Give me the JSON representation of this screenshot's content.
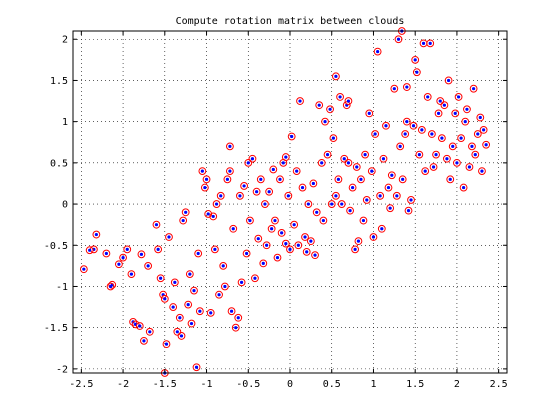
{
  "chart_data": {
    "type": "scatter",
    "title": "Compute rotation matrix between clouds",
    "xlabel": "",
    "ylabel": "",
    "xlim": [
      -2.6,
      2.6
    ],
    "ylim": [
      -2.05,
      2.1
    ],
    "xticks": [
      -2.5,
      -2,
      -1.5,
      -1,
      -0.5,
      0,
      0.5,
      1,
      1.5,
      2,
      2.5
    ],
    "xtick_labels": [
      "-2.5",
      "-2",
      "-1.5",
      "-1",
      "-0.5",
      "0",
      "0.5",
      "1",
      "1.5",
      "2",
      "2.5"
    ],
    "yticks": [
      -2,
      -1.5,
      -1,
      -0.5,
      0,
      0.5,
      1,
      1.5,
      2
    ],
    "ytick_labels": [
      "-2",
      "-1.5",
      "-1",
      "-0.5",
      "0",
      "0.5",
      "1",
      "1.5",
      "2"
    ],
    "grid": true,
    "grid_style": "dotted",
    "colors": {
      "circle": "#ff0000",
      "dot": "#0000ff",
      "axes": "#000000",
      "grid": "#000000"
    },
    "series": [
      {
        "marker": "red circle with blue dot",
        "points": [
          [
            -2.47,
            -0.79
          ],
          [
            -2.35,
            -0.55
          ],
          [
            -2.4,
            -0.56
          ],
          [
            -2.32,
            -0.37
          ],
          [
            -2.2,
            -0.6
          ],
          [
            -2.13,
            -0.98
          ],
          [
            -2.15,
            -1.0
          ],
          [
            -2.05,
            -0.73
          ],
          [
            -2.0,
            -0.65
          ],
          [
            -1.95,
            -0.55
          ],
          [
            -1.9,
            -0.85
          ],
          [
            -1.88,
            -1.43
          ],
          [
            -1.85,
            -1.46
          ],
          [
            -1.8,
            -1.48
          ],
          [
            -1.78,
            -0.61
          ],
          [
            -1.75,
            -1.66
          ],
          [
            -1.7,
            -0.75
          ],
          [
            -1.68,
            -1.55
          ],
          [
            -1.6,
            -0.25
          ],
          [
            -1.58,
            -0.55
          ],
          [
            -1.55,
            -0.9
          ],
          [
            -1.52,
            -1.1
          ],
          [
            -1.5,
            -1.15
          ],
          [
            -1.48,
            -1.7
          ],
          [
            -1.45,
            -0.4
          ],
          [
            -1.4,
            -1.25
          ],
          [
            -1.38,
            -0.95
          ],
          [
            -1.35,
            -1.55
          ],
          [
            -1.32,
            -1.38
          ],
          [
            -1.3,
            -1.6
          ],
          [
            -1.28,
            -0.2
          ],
          [
            -1.25,
            -0.1
          ],
          [
            -1.22,
            -1.22
          ],
          [
            -1.2,
            -0.85
          ],
          [
            -1.18,
            -1.45
          ],
          [
            -1.15,
            -1.05
          ],
          [
            -1.12,
            -1.98
          ],
          [
            -1.1,
            -0.6
          ],
          [
            -1.08,
            -1.3
          ],
          [
            -1.05,
            0.4
          ],
          [
            -1.02,
            0.2
          ],
          [
            -1.0,
            0.3
          ],
          [
            -0.98,
            -0.12
          ],
          [
            -0.95,
            -1.32
          ],
          [
            -0.92,
            -0.15
          ],
          [
            -0.9,
            -0.55
          ],
          [
            -0.88,
            0.0
          ],
          [
            -0.85,
            -1.1
          ],
          [
            -0.83,
            0.1
          ],
          [
            -0.8,
            -0.75
          ],
          [
            -0.78,
            -1.0
          ],
          [
            -0.75,
            0.3
          ],
          [
            -0.72,
            0.4
          ],
          [
            -0.7,
            -1.3
          ],
          [
            -0.68,
            -0.3
          ],
          [
            -0.65,
            -1.5
          ],
          [
            -0.62,
            -1.38
          ],
          [
            -0.6,
            0.1
          ],
          [
            -0.58,
            -0.95
          ],
          [
            -0.55,
            0.22
          ],
          [
            -0.52,
            -0.6
          ],
          [
            -0.5,
            0.5
          ],
          [
            -0.48,
            -0.2
          ],
          [
            -0.45,
            0.55
          ],
          [
            -0.42,
            -0.9
          ],
          [
            -0.4,
            0.15
          ],
          [
            -0.38,
            -0.42
          ],
          [
            -0.35,
            0.3
          ],
          [
            -0.32,
            -0.72
          ],
          [
            -0.3,
            0.0
          ],
          [
            -0.28,
            -0.5
          ],
          [
            -0.25,
            0.15
          ],
          [
            -0.22,
            -0.3
          ],
          [
            -0.2,
            0.42
          ],
          [
            -0.18,
            -0.2
          ],
          [
            -0.15,
            -0.65
          ],
          [
            -0.12,
            0.3
          ],
          [
            -0.1,
            -0.35
          ],
          [
            -0.08,
            0.5
          ],
          [
            -0.05,
            -0.48
          ],
          [
            -0.02,
            0.1
          ],
          [
            0.0,
            -0.55
          ],
          [
            0.02,
            0.82
          ],
          [
            0.05,
            -0.25
          ],
          [
            0.08,
            0.4
          ],
          [
            0.1,
            -0.5
          ],
          [
            0.12,
            1.25
          ],
          [
            0.15,
            0.2
          ],
          [
            0.18,
            -0.4
          ],
          [
            0.2,
            -0.58
          ],
          [
            0.22,
            0.0
          ],
          [
            0.25,
            -0.45
          ],
          [
            0.28,
            0.25
          ],
          [
            0.3,
            -0.62
          ],
          [
            0.32,
            -0.1
          ],
          [
            0.35,
            1.2
          ],
          [
            0.38,
            0.5
          ],
          [
            0.4,
            -0.2
          ],
          [
            0.42,
            1.0
          ],
          [
            0.45,
            0.6
          ],
          [
            0.48,
            1.15
          ],
          [
            0.5,
            0.0
          ],
          [
            0.52,
            0.8
          ],
          [
            0.55,
            0.1
          ],
          [
            0.58,
            0.3
          ],
          [
            0.6,
            1.3
          ],
          [
            0.62,
            0.0
          ],
          [
            0.65,
            0.55
          ],
          [
            0.68,
            1.2
          ],
          [
            0.7,
            0.5
          ],
          [
            0.72,
            -0.08
          ],
          [
            0.75,
            0.2
          ],
          [
            0.78,
            -0.55
          ],
          [
            0.8,
            0.45
          ],
          [
            0.82,
            -0.45
          ],
          [
            0.85,
            0.3
          ],
          [
            0.88,
            -0.2
          ],
          [
            0.9,
            0.6
          ],
          [
            0.92,
            0.05
          ],
          [
            0.95,
            1.1
          ],
          [
            0.98,
            0.4
          ],
          [
            1.0,
            -0.4
          ],
          [
            1.02,
            0.85
          ],
          [
            1.05,
            1.85
          ],
          [
            1.08,
            0.1
          ],
          [
            1.1,
            -0.3
          ],
          [
            1.12,
            0.55
          ],
          [
            1.15,
            0.95
          ],
          [
            1.18,
            0.2
          ],
          [
            1.2,
            -0.05
          ],
          [
            1.22,
            0.35
          ],
          [
            1.25,
            1.4
          ],
          [
            1.28,
            0.1
          ],
          [
            1.3,
            2.0
          ],
          [
            1.32,
            0.7
          ],
          [
            1.35,
            0.3
          ],
          [
            1.38,
            0.85
          ],
          [
            1.4,
            1.0
          ],
          [
            1.42,
            -0.08
          ],
          [
            1.45,
            0.05
          ],
          [
            1.48,
            0.95
          ],
          [
            1.5,
            1.75
          ],
          [
            1.52,
            1.6
          ],
          [
            1.55,
            0.6
          ],
          [
            1.58,
            0.9
          ],
          [
            1.6,
            1.95
          ],
          [
            1.62,
            0.4
          ],
          [
            1.65,
            1.3
          ],
          [
            1.68,
            1.95
          ],
          [
            1.7,
            0.85
          ],
          [
            1.72,
            0.45
          ],
          [
            1.75,
            0.6
          ],
          [
            1.78,
            1.1
          ],
          [
            1.8,
            1.25
          ],
          [
            1.82,
            0.8
          ],
          [
            1.85,
            1.2
          ],
          [
            1.88,
            0.55
          ],
          [
            1.9,
            1.5
          ],
          [
            1.92,
            0.3
          ],
          [
            1.95,
            0.7
          ],
          [
            1.98,
            1.1
          ],
          [
            2.0,
            0.5
          ],
          [
            2.02,
            1.3
          ],
          [
            2.05,
            0.8
          ],
          [
            2.08,
            0.2
          ],
          [
            2.1,
            1.0
          ],
          [
            2.12,
            1.15
          ],
          [
            2.15,
            0.45
          ],
          [
            2.18,
            0.7
          ],
          [
            2.2,
            1.4
          ],
          [
            2.22,
            0.6
          ],
          [
            2.25,
            0.85
          ],
          [
            2.28,
            1.05
          ],
          [
            2.3,
            0.4
          ],
          [
            2.32,
            0.9
          ],
          [
            2.35,
            0.72
          ],
          [
            1.34,
            2.1
          ],
          [
            -1.5,
            -2.05
          ],
          [
            -0.05,
            0.57
          ],
          [
            0.55,
            1.55
          ],
          [
            0.7,
            1.25
          ],
          [
            1.4,
            1.42
          ],
          [
            -0.72,
            0.7
          ]
        ]
      }
    ]
  }
}
